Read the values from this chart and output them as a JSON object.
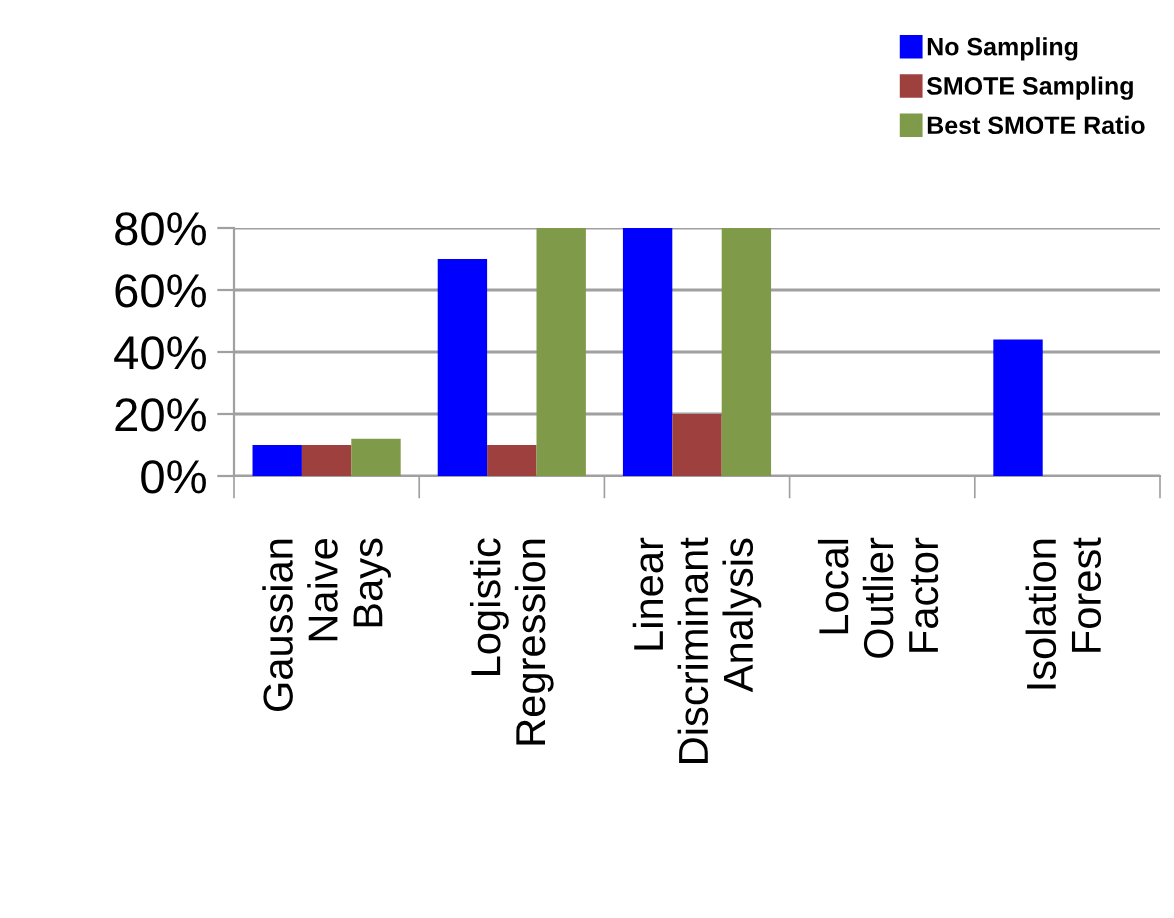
{
  "chart_data": {
    "type": "bar",
    "categories": [
      "Gaussian\nNaive\nBays",
      "Logistic\nRegression",
      "Linear\nDiscriminant\nAnalysis",
      "Local\nOutlier\nFactor",
      "Isolation\nForest"
    ],
    "series": [
      {
        "name": "No Sampling",
        "color": "#0000ff",
        "values": [
          10,
          70,
          80,
          0,
          44
        ]
      },
      {
        "name": "SMOTE Sampling",
        "color": "#9e413e",
        "values": [
          10,
          10,
          20,
          0,
          0
        ]
      },
      {
        "name": "Best SMOTE Ratio",
        "color": "#7f9a48",
        "values": [
          12,
          80,
          80,
          0,
          0
        ]
      }
    ],
    "ylim": [
      0,
      80
    ],
    "yticks": [
      {
        "value": 0,
        "label": "0%"
      },
      {
        "value": 20,
        "label": "20%"
      },
      {
        "value": 40,
        "label": "40%"
      },
      {
        "value": 60,
        "label": "60%"
      },
      {
        "value": 80,
        "label": "80%"
      }
    ],
    "grid": "y",
    "legend": "top right"
  }
}
